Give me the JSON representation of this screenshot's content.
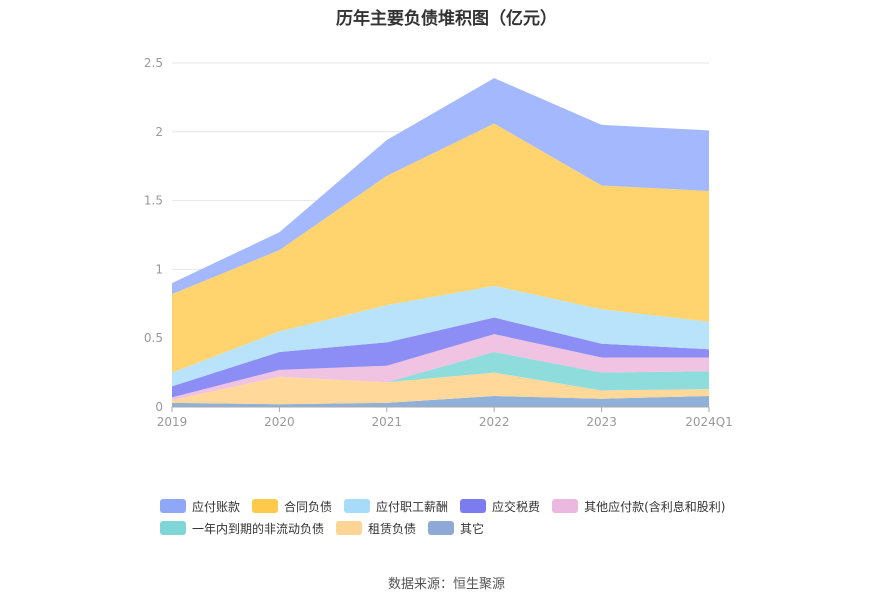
{
  "chart_data": {
    "type": "area",
    "stacked": true,
    "title": "历年主要负债堆积图（亿元）",
    "categories": [
      "2019",
      "2020",
      "2021",
      "2022",
      "2023",
      "2024Q1"
    ],
    "ylim": [
      0,
      2.5
    ],
    "yticks": [
      "0",
      "0.5",
      "1",
      "1.5",
      "2",
      "2.5"
    ],
    "grid": true,
    "legend_position": "bottom",
    "series": [
      {
        "name": "其它",
        "color": "#8fb0d8",
        "values": [
          0.03,
          0.02,
          0.03,
          0.08,
          0.06,
          0.08
        ]
      },
      {
        "name": "租赁负债",
        "color": "#ffd89a",
        "values": [
          0.02,
          0.2,
          0.15,
          0.17,
          0.06,
          0.05
        ]
      },
      {
        "name": "一年内到期的非流动负债",
        "color": "#8fdcdc",
        "values": [
          0.0,
          0.0,
          0.0,
          0.15,
          0.13,
          0.13
        ]
      },
      {
        "name": "其他应付款(含利息和股利)",
        "color": "#f0c3e3",
        "values": [
          0.02,
          0.05,
          0.12,
          0.13,
          0.11,
          0.1
        ]
      },
      {
        "name": "应交税费",
        "color": "#8c8df5",
        "values": [
          0.08,
          0.13,
          0.17,
          0.12,
          0.1,
          0.06
        ]
      },
      {
        "name": "应付职工薪酬",
        "color": "#b8e3fb",
        "values": [
          0.1,
          0.15,
          0.27,
          0.23,
          0.25,
          0.2
        ]
      },
      {
        "name": "合同负债",
        "color": "#ffd46e",
        "values": [
          0.57,
          0.59,
          0.94,
          1.18,
          0.9,
          0.95
        ]
      },
      {
        "name": "应付账款",
        "color": "#a3b8fd",
        "values": [
          0.08,
          0.13,
          0.26,
          0.33,
          0.44,
          0.44
        ]
      }
    ],
    "legend_order": [
      "应付账款",
      "合同负债",
      "应付职工薪酬",
      "应交税费",
      "其他应付款(含利息和股利)",
      "一年内到期的非流动负债",
      "租赁负债",
      "其它"
    ],
    "legend_colors": {
      "应付账款": "#8ea7f7",
      "合同负债": "#ffc94a",
      "应付职工薪酬": "#a6dcfa",
      "应交税费": "#7b7cf0",
      "其他应付款(含利息和股利)": "#ecb8df",
      "一年内到期的非流动负债": "#7fd6d6",
      "租赁负债": "#ffd596",
      "其它": "#8fa9d6"
    }
  },
  "source": "数据来源：恒生聚源"
}
